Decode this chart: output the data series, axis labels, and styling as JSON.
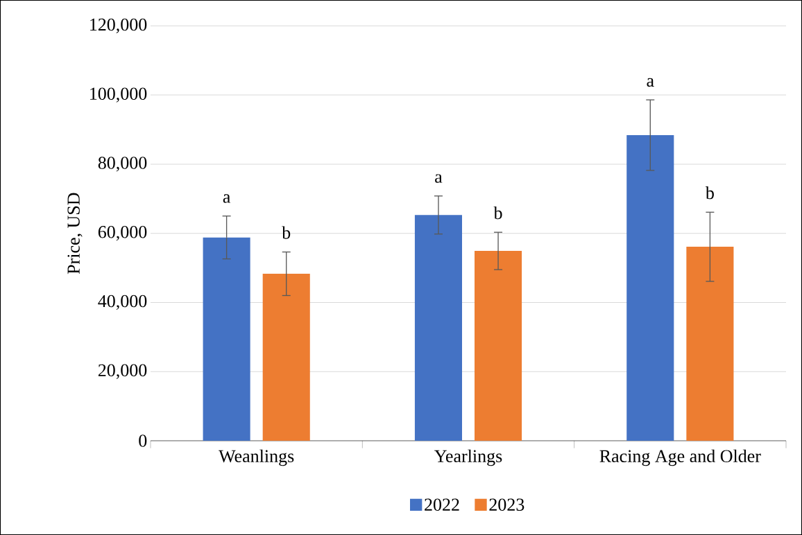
{
  "chart_data": {
    "type": "bar",
    "ylabel": "Price, USD",
    "categories": [
      "Weanlings",
      "Yearlings",
      "Racing Age and Older"
    ],
    "series": [
      {
        "name": "2022",
        "color": "#4472c4",
        "values": [
          58800,
          65300,
          88400
        ],
        "errors": [
          6200,
          5500,
          10200
        ]
      },
      {
        "name": "2023",
        "color": "#ed7d31",
        "values": [
          48300,
          54900,
          56100
        ],
        "errors": [
          6300,
          5400,
          10000
        ]
      }
    ],
    "ylim": [
      0,
      120000
    ],
    "yticks": [
      {
        "value": 0,
        "label": "0"
      },
      {
        "value": 20000,
        "label": "20,000"
      },
      {
        "value": 40000,
        "label": "40,000"
      },
      {
        "value": 60000,
        "label": "60,000"
      },
      {
        "value": 80000,
        "label": "80,000"
      },
      {
        "value": 100000,
        "label": "100,000"
      },
      {
        "value": 120000,
        "label": "120,000"
      }
    ],
    "grid": "y",
    "legend": "bottom",
    "annotations": [
      "a",
      "b",
      "a",
      "b",
      "a",
      "b"
    ]
  }
}
